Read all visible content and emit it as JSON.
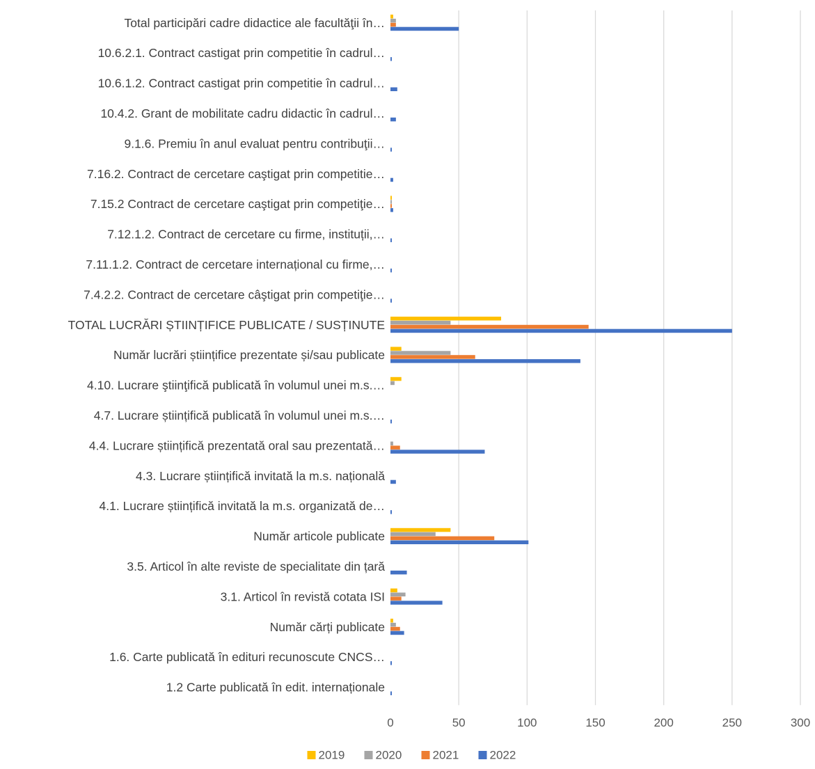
{
  "chart_data": {
    "type": "bar",
    "orientation": "horizontal",
    "categories": [
      "Total participări cadre didactice ale facultăţii în…",
      "10.6.2.1. Contract castigat prin competitie în cadrul…",
      "10.6.1.2. Contract castigat prin competitie în cadrul…",
      "10.4.2. Grant de mobilitate cadru didactic în cadrul…",
      "9.1.6. Premiu în anul evaluat pentru contribuţii…",
      "7.16.2. Contract de cercetare caştigat prin competitie…",
      "7.15.2 Contract de cercetare caştigat prin competiţie…",
      "7.12.1.2. Contract de cercetare cu firme, instituții,…",
      "7.11.1.2. Contract de cercetare internațional cu firme,…",
      "7.4.2.2. Contract de cercetare câştigat prin competiţie…",
      "TOTAL LUCRĂRI ȘTIINȚIFICE PUBLICATE / SUSȚINUTE",
      "Număr lucrări științifice prezentate și/sau publicate",
      "4.10. Lucrare ştiinţifică publicată în volumul unei m.s.…",
      "4.7. Lucrare științifică publicată în volumul unei m.s.…",
      "4.4. Lucrare științifică prezentată oral sau prezentată…",
      "4.3. Lucrare științifică invitată la m.s. națională",
      "4.1. Lucrare științifică invitată la m.s. organizată de…",
      "Număr articole publicate",
      "3.5. Articol în alte reviste de specialitate din țară",
      "3.1. Articol în revistă cotata ISI",
      "Număr cărți publicate",
      "1.6. Carte publicată în edituri recunoscute CNCS…",
      "1.2 Carte publicată în edit. internaționale"
    ],
    "series": [
      {
        "name": "2019",
        "color": "#FFC000",
        "values": [
          2,
          0,
          0,
          0,
          0,
          0,
          1,
          0,
          0,
          0,
          81,
          8,
          8,
          0,
          0,
          0,
          0,
          44,
          0,
          5,
          2,
          0,
          0
        ]
      },
      {
        "name": "2020",
        "color": "#A5A5A5",
        "values": [
          4,
          0,
          0,
          0,
          0,
          0,
          1,
          0,
          0,
          0,
          44,
          44,
          3,
          0,
          2,
          0,
          0,
          33,
          0,
          11,
          4,
          0,
          0
        ]
      },
      {
        "name": "2021",
        "color": "#ED7D31",
        "values": [
          4,
          0,
          0,
          0,
          0,
          0,
          1,
          0,
          0,
          0,
          145,
          62,
          0,
          0,
          7,
          0,
          0,
          76,
          0,
          8,
          7,
          0,
          0
        ]
      },
      {
        "name": "2022",
        "color": "#4472C4",
        "values": [
          50,
          1,
          5,
          4,
          1,
          2,
          2,
          1,
          1,
          1,
          250,
          139,
          0,
          1,
          69,
          4,
          1,
          101,
          12,
          38,
          10,
          1,
          1
        ]
      }
    ],
    "xlim": [
      0,
      300
    ],
    "xticks": [
      0,
      50,
      100,
      150,
      200,
      250,
      300
    ],
    "grid": "vertical",
    "legend_position": "bottom",
    "title": "",
    "xlabel": "",
    "ylabel": ""
  }
}
